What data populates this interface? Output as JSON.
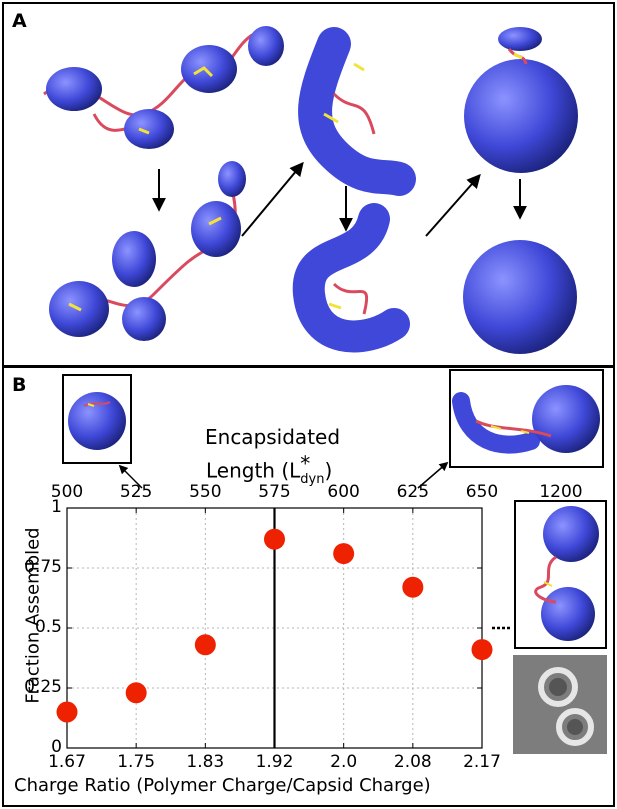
{
  "panels": {
    "a_letter": "A",
    "b_letter": "B"
  },
  "colors": {
    "capsid": "#3f48d8",
    "polymer": "#d94a5e",
    "contact": "#f2e23a",
    "marker": "#ee2200"
  },
  "chart_data": {
    "type": "scatter",
    "xlabel": "Charge Ratio (Polymer Charge/Capsid Charge)",
    "ylabel": "Fraction Assembled",
    "top_axis_title_line1": "Encapsidated",
    "top_axis_title_line2_prefix": "Length (L",
    "top_axis_title_sup": "*",
    "top_axis_title_sub": "dyn",
    "top_axis_title_suffix": ")",
    "x_ticks": [
      "1.67",
      "1.75",
      "1.83",
      "1.92",
      "2.0",
      "2.08",
      "2.17"
    ],
    "top_ticks": [
      "500",
      "525",
      "550",
      "575",
      "600",
      "625",
      "650"
    ],
    "top_extra_tick": "1200",
    "y_ticks": [
      "0",
      "0.25",
      "0.5",
      "0.75",
      "1"
    ],
    "ylim": [
      0,
      1
    ],
    "grid": true,
    "vertical_line_at": "1.92",
    "points": [
      {
        "x": "1.67",
        "y": 0.15
      },
      {
        "x": "1.75",
        "y": 0.23
      },
      {
        "x": "1.83",
        "y": 0.43
      },
      {
        "x": "1.92",
        "y": 0.87
      },
      {
        "x": "2.0",
        "y": 0.81
      },
      {
        "x": "2.08",
        "y": 0.67
      },
      {
        "x": "2.17",
        "y": 0.41
      }
    ],
    "dotted_reference_y": 0.5
  }
}
